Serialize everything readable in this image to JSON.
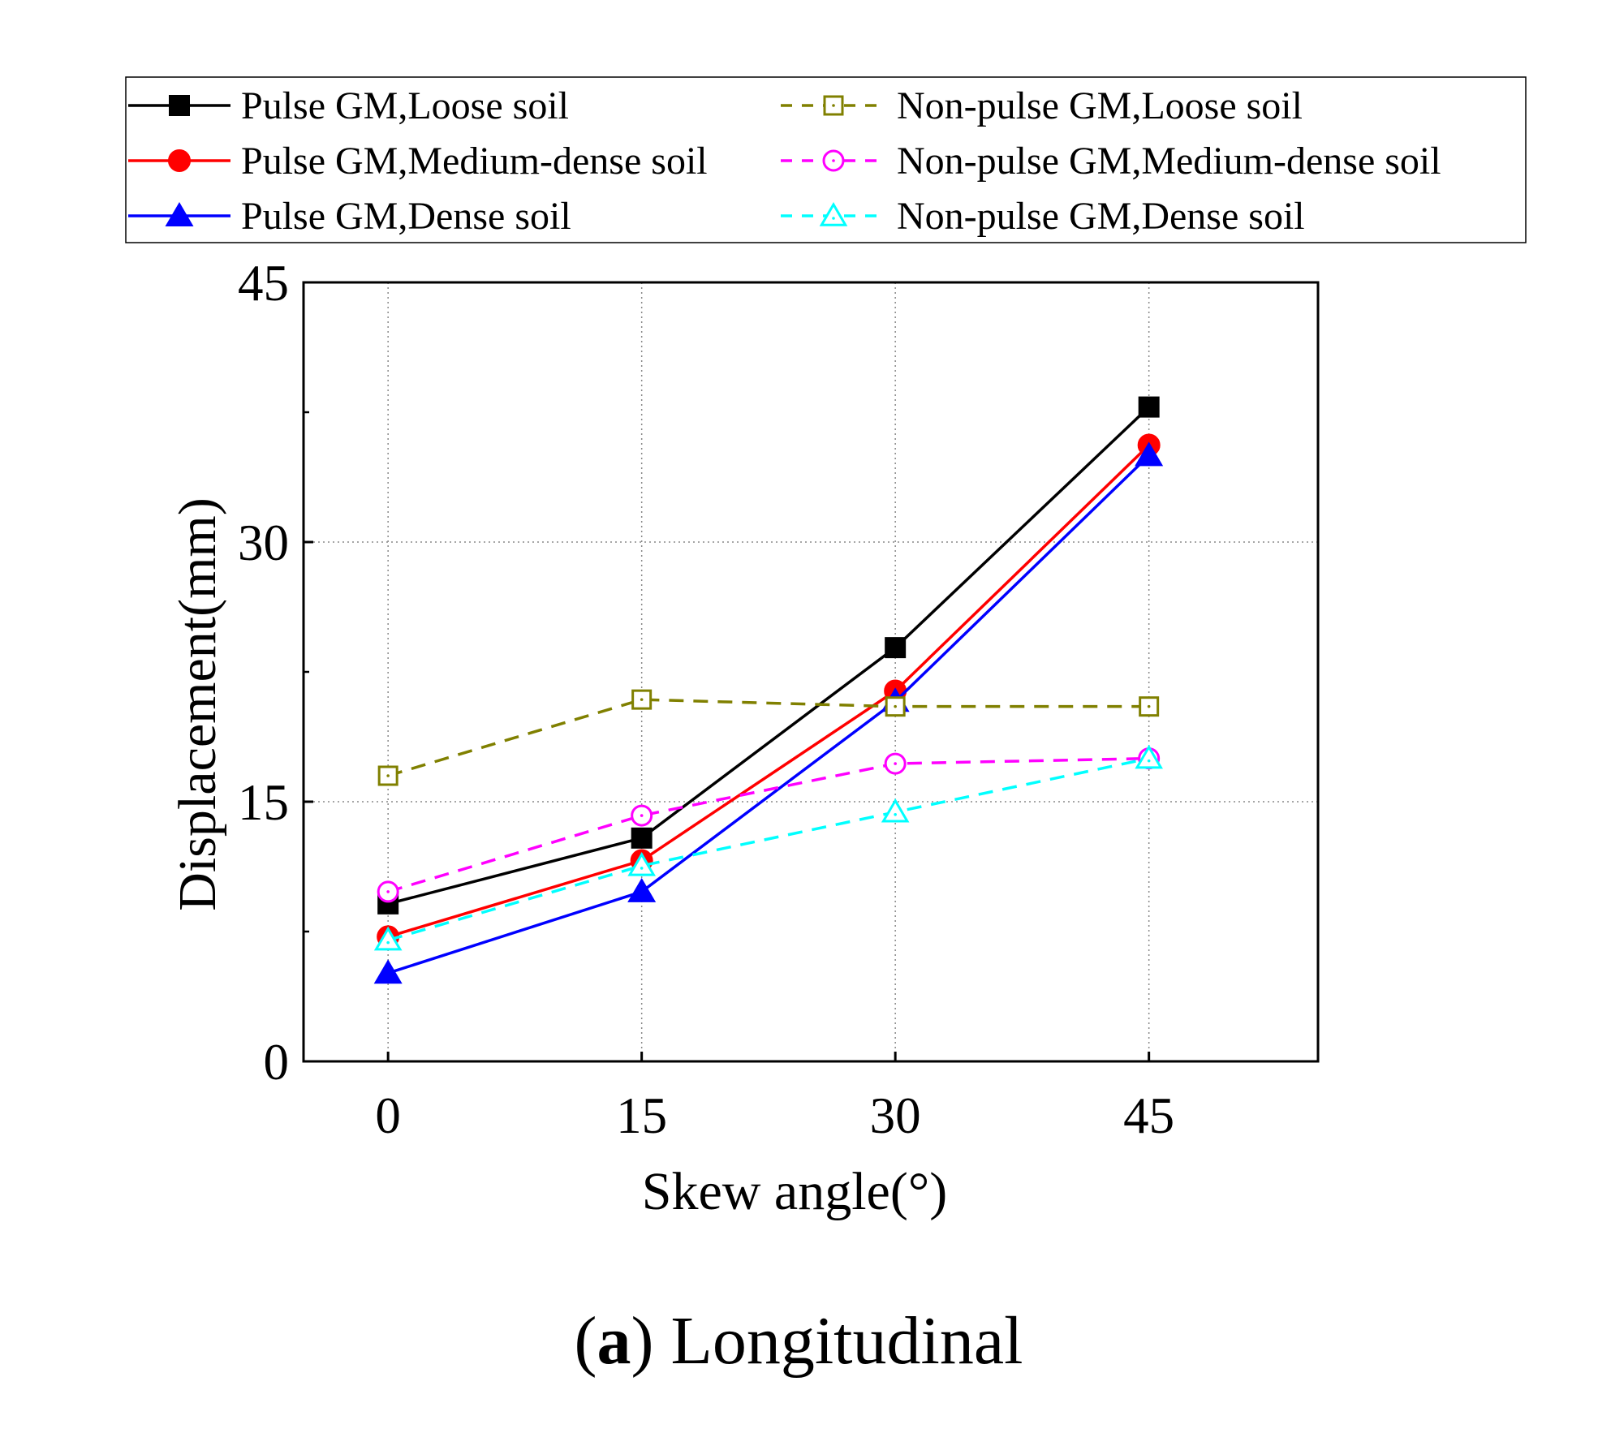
{
  "chart_data": {
    "type": "line",
    "title": "",
    "caption_bold": "a",
    "caption_rest": "Longitudinal",
    "xlabel": "Skew angle(°)",
    "ylabel": "Displacement(mm)",
    "xlim": [
      -5,
      55
    ],
    "ylim": [
      0,
      45
    ],
    "xticks": [
      0,
      15,
      30,
      45
    ],
    "yticks": [
      0,
      15,
      30,
      45
    ],
    "grid": true,
    "legend_position": "top",
    "x": [
      0,
      15,
      30,
      45
    ],
    "series": [
      {
        "name": "Pulse GM,Loose soil",
        "color": "#000000",
        "dash": false,
        "marker": "square",
        "filled": true,
        "values": [
          9.1,
          12.9,
          23.9,
          37.8
        ]
      },
      {
        "name": "Pulse GM,Medium-dense soil",
        "color": "#ff0000",
        "dash": false,
        "marker": "circle",
        "filled": true,
        "values": [
          7.2,
          11.6,
          21.4,
          35.6
        ]
      },
      {
        "name": "Pulse GM,Dense soil",
        "color": "#0000ff",
        "dash": false,
        "marker": "triangle",
        "filled": true,
        "values": [
          5.1,
          9.8,
          20.8,
          35.0
        ]
      },
      {
        "name": "Non-pulse GM,Loose soil",
        "color": "#808000",
        "dash": true,
        "marker": "square",
        "filled": false,
        "values": [
          16.5,
          20.9,
          20.5,
          20.5
        ]
      },
      {
        "name": "Non-pulse GM,Medium-dense soil",
        "color": "#ff00ff",
        "dash": true,
        "marker": "circle",
        "filled": false,
        "values": [
          9.8,
          14.2,
          17.2,
          17.5
        ]
      },
      {
        "name": "Non-pulse GM,Dense soil",
        "color": "#00ffff",
        "dash": true,
        "marker": "triangle",
        "filled": false,
        "values": [
          7.0,
          11.3,
          14.4,
          17.5
        ]
      }
    ]
  }
}
